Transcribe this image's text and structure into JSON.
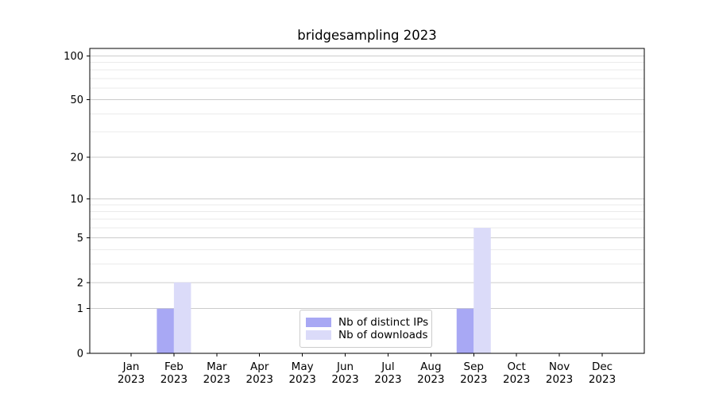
{
  "chart_data": {
    "type": "bar",
    "title": "bridgesampling 2023",
    "categories": [
      "Jan 2023",
      "Feb 2023",
      "Mar 2023",
      "Apr 2023",
      "May 2023",
      "Jun 2023",
      "Jul 2023",
      "Aug 2023",
      "Sep 2023",
      "Oct 2023",
      "Nov 2023",
      "Dec 2023"
    ],
    "x_tick_lines": [
      {
        "month": "Jan",
        "year": "2023"
      },
      {
        "month": "Feb",
        "year": "2023"
      },
      {
        "month": "Mar",
        "year": "2023"
      },
      {
        "month": "Apr",
        "year": "2023"
      },
      {
        "month": "May",
        "year": "2023"
      },
      {
        "month": "Jun",
        "year": "2023"
      },
      {
        "month": "Jul",
        "year": "2023"
      },
      {
        "month": "Aug",
        "year": "2023"
      },
      {
        "month": "Sep",
        "year": "2023"
      },
      {
        "month": "Oct",
        "year": "2023"
      },
      {
        "month": "Nov",
        "year": "2023"
      },
      {
        "month": "Dec",
        "year": "2023"
      }
    ],
    "series": [
      {
        "name": "Nb of distinct IPs",
        "color": "#a8a8f4",
        "values": [
          0,
          1,
          0,
          0,
          0,
          0,
          0,
          0,
          1,
          0,
          0,
          0
        ]
      },
      {
        "name": "Nb of downloads",
        "color": "#dbdbf9",
        "values": [
          0,
          2,
          0,
          0,
          0,
          0,
          0,
          0,
          6,
          0,
          0,
          0
        ]
      }
    ],
    "xlabel": "",
    "ylabel": "",
    "yscale": "log1p",
    "ylim": [
      0,
      112
    ],
    "yticks": [
      0,
      1,
      2,
      5,
      10,
      20,
      50,
      100
    ],
    "minor_gridlines": [
      3,
      4,
      6,
      7,
      8,
      9,
      30,
      40,
      60,
      70,
      80,
      90
    ],
    "grid": true,
    "legend_position": "lower center"
  },
  "legend": {
    "items": [
      {
        "label": "Nb of distinct IPs",
        "color": "#a8a8f4"
      },
      {
        "label": "Nb of downloads",
        "color": "#dbdbf9"
      }
    ]
  },
  "colors": {
    "background": "#ffffff",
    "axis": "#000000",
    "grid_major": "#cccccc",
    "grid_minor": "#ebebeb",
    "text": "#000000"
  }
}
